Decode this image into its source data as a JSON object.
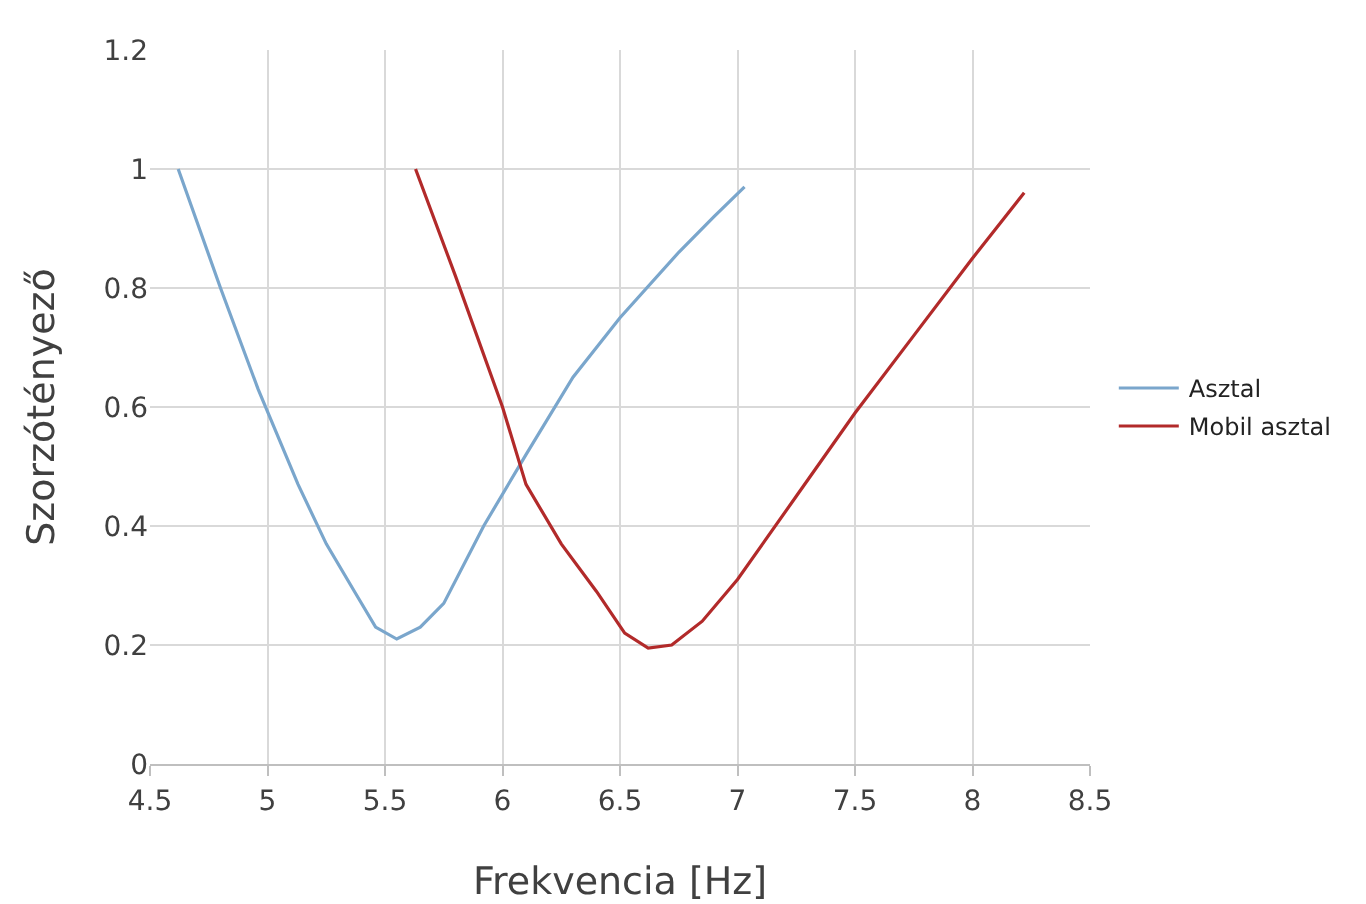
{
  "chart_data": {
    "type": "line",
    "xlabel": "Frekvencia [Hz]",
    "ylabel": "Szorzótényező",
    "xlim": [
      4.5,
      8.5
    ],
    "xticks": [
      4.5,
      5,
      5.5,
      6,
      6.5,
      7,
      7.5,
      8,
      8.5
    ],
    "ylim": [
      0,
      1.2
    ],
    "yticks": [
      0,
      0.2,
      0.4,
      0.6,
      0.8,
      1,
      1.2
    ],
    "grid": true,
    "legend": "right",
    "marker": "none",
    "line_style": "solid",
    "series": [
      {
        "name": "Asztal",
        "color": "#7aa6cc",
        "x": [
          4.62,
          4.8,
          4.96,
          5.13,
          5.25,
          5.37,
          5.46,
          5.55,
          5.65,
          5.75,
          5.92,
          6.1,
          6.3,
          6.5,
          6.75,
          6.9,
          7.03
        ],
        "values": [
          1.0,
          0.8,
          0.63,
          0.47,
          0.37,
          0.29,
          0.23,
          0.21,
          0.23,
          0.27,
          0.4,
          0.52,
          0.65,
          0.75,
          0.86,
          0.92,
          0.97
        ]
      },
      {
        "name": "Mobil asztal",
        "color": "#b22a2a",
        "x": [
          5.63,
          5.8,
          6.0,
          6.1,
          6.25,
          6.4,
          6.52,
          6.62,
          6.72,
          6.85,
          7.0,
          7.25,
          7.5,
          7.75,
          8.0,
          8.1,
          8.22
        ],
        "values": [
          1.0,
          0.82,
          0.6,
          0.47,
          0.37,
          0.29,
          0.22,
          0.195,
          0.2,
          0.24,
          0.31,
          0.45,
          0.59,
          0.72,
          0.85,
          0.9,
          0.96
        ]
      }
    ]
  }
}
